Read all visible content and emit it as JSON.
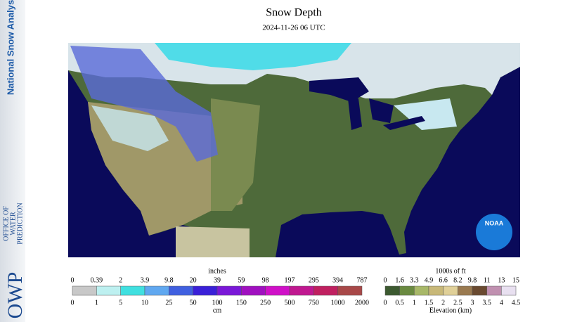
{
  "sidebar": {
    "title": "National Snow Analysis",
    "logo": "OWP",
    "office": [
      "OFFICE OF",
      "WATER",
      "PREDICTION"
    ]
  },
  "header": {
    "title": "Snow Depth",
    "subtitle": "2024-11-26 06 UTC"
  },
  "map": {
    "logo": "NOAA"
  },
  "snow_legend": {
    "top_label": "inches",
    "bottom_label": "cm",
    "top_ticks": [
      0,
      0.39,
      2,
      3.9,
      9.8,
      20,
      39,
      59,
      98,
      197,
      295,
      394,
      787
    ],
    "bottom_ticks": [
      0,
      1,
      5,
      10,
      25,
      50,
      100,
      150,
      250,
      500,
      750,
      1000,
      2000
    ],
    "colors": [
      "#c8c8c8",
      "#bdf0f0",
      "#40e0e0",
      "#60a8f0",
      "#4060e0",
      "#3a20d8",
      "#7a18d8",
      "#a010c0",
      "#d010c8",
      "#c01890",
      "#c02060",
      "#a84848"
    ]
  },
  "elevation_legend": {
    "top_label": "1000s of ft",
    "bottom_label": "Elevation (km)",
    "top_ticks": [
      0,
      1.6,
      3.3,
      4.9,
      6.6,
      8.2,
      9.8,
      11,
      13,
      15
    ],
    "bottom_ticks": [
      0,
      0.5,
      1,
      1.5,
      2,
      2.5,
      3,
      3.5,
      4,
      4.5
    ],
    "colors": [
      "#3c5a30",
      "#6a8a40",
      "#a8b868",
      "#c8b878",
      "#e0d098",
      "#9a7a50",
      "#6a4a30",
      "#c090b0",
      "#e8e0f0"
    ]
  }
}
